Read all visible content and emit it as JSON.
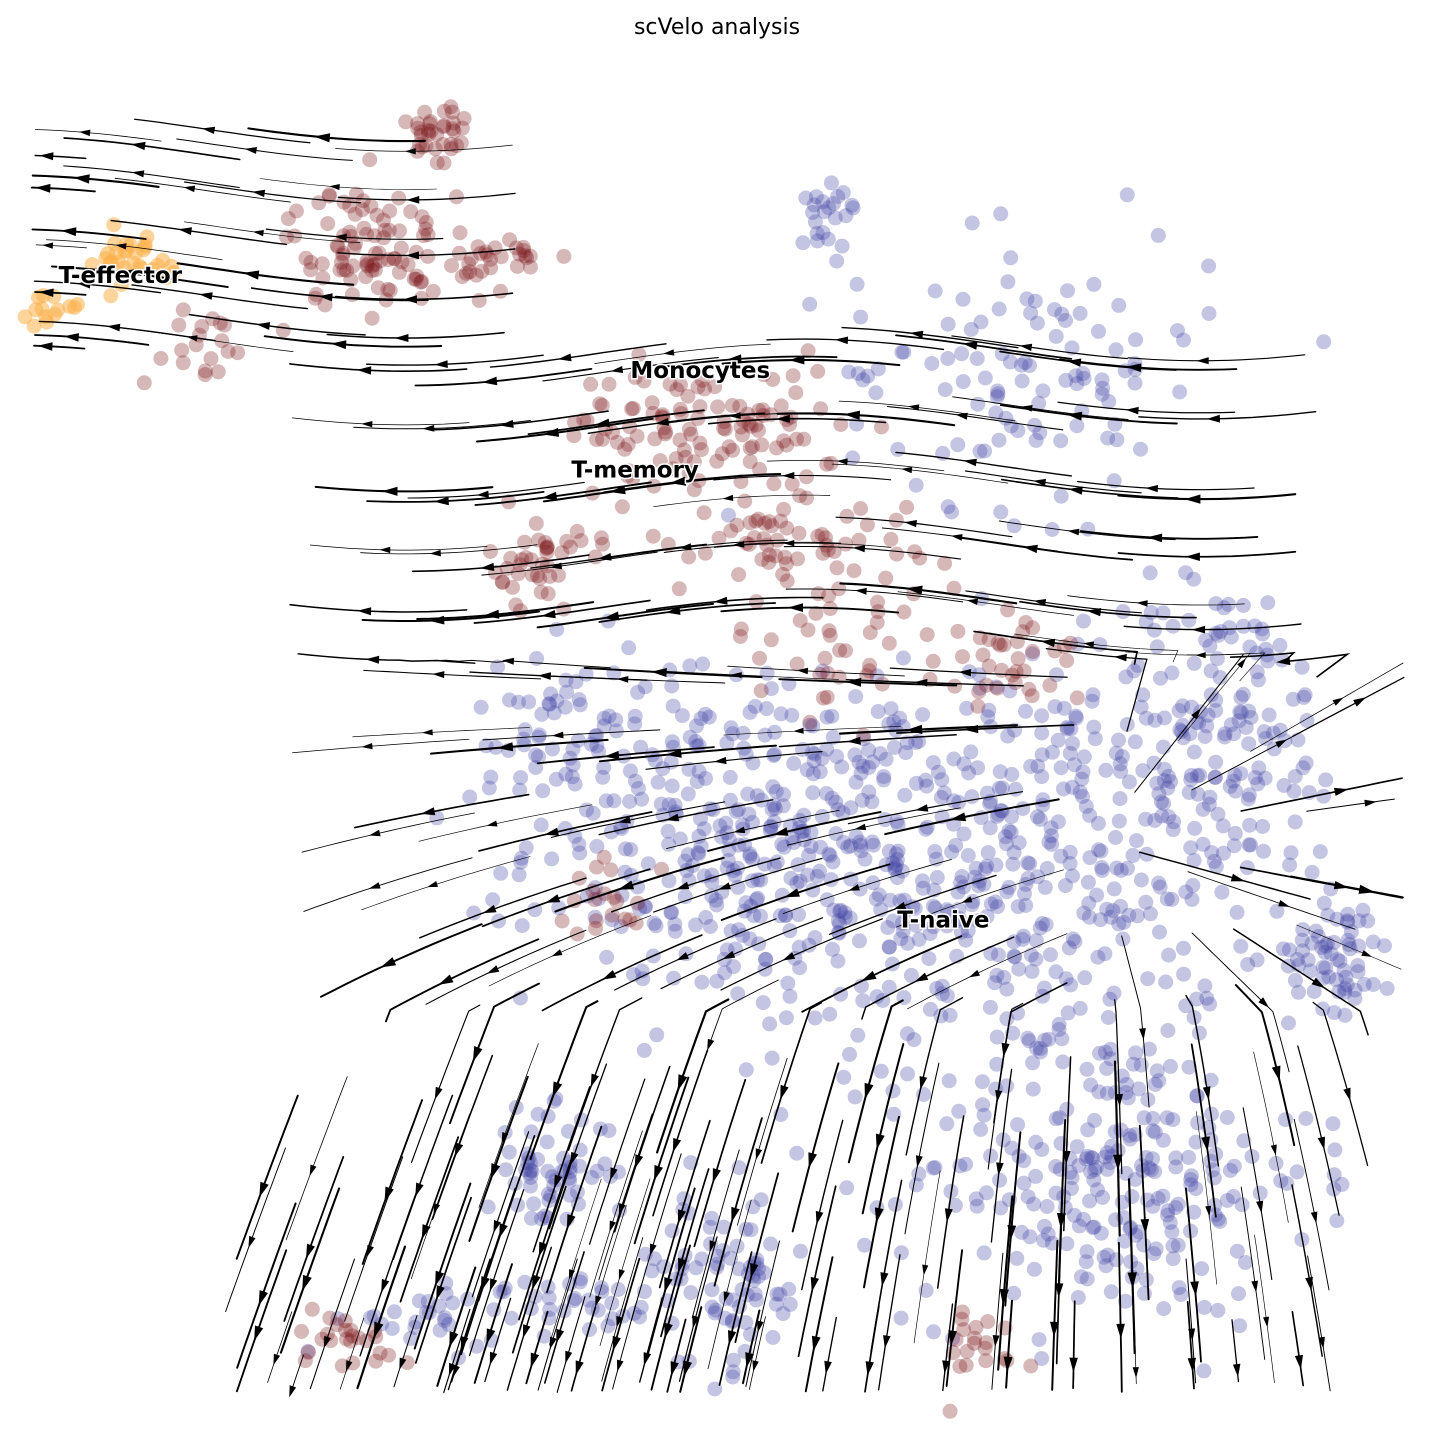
{
  "chart_data": {
    "type": "scatter",
    "title": "scVelo analysis",
    "xlabel": "",
    "ylabel": "",
    "grid": false,
    "axes_visible": false,
    "xlim": [
      0,
      100
    ],
    "ylim": [
      0,
      100
    ],
    "colors": {
      "T-naive": "#3b3fa3",
      "Monocytes": "#7a1416",
      "T-memory": "#7a1416",
      "T-effector": "#fbb04a",
      "streamlines": "#000000"
    },
    "cluster_labels": [
      {
        "name": "T-effector",
        "x": 3.1,
        "y": 82.4
      },
      {
        "name": "Monocytes",
        "x": 43.8,
        "y": 75.5
      },
      {
        "name": "T-memory",
        "x": 39.6,
        "y": 68.3
      },
      {
        "name": "T-naive",
        "x": 62.8,
        "y": 35.7
      }
    ],
    "clusters": [
      {
        "name": "T-naive",
        "color": "#3b3fa3",
        "blobs": [
          {
            "cx": 70,
            "cy": 40,
            "rx": 18,
            "ry": 14,
            "n": 420
          },
          {
            "cx": 52,
            "cy": 42,
            "rx": 14,
            "ry": 11,
            "n": 300
          },
          {
            "cx": 78,
            "cy": 18,
            "rx": 13,
            "ry": 10,
            "n": 260
          },
          {
            "cx": 86,
            "cy": 50,
            "rx": 8,
            "ry": 10,
            "n": 140
          },
          {
            "cx": 94,
            "cy": 34,
            "rx": 3,
            "ry": 4,
            "n": 60
          },
          {
            "cx": 72,
            "cy": 76,
            "rx": 12,
            "ry": 9,
            "n": 110
          },
          {
            "cx": 58,
            "cy": 88,
            "rx": 2,
            "ry": 2,
            "n": 22
          },
          {
            "cx": 38,
            "cy": 18,
            "rx": 4,
            "ry": 4,
            "n": 60
          },
          {
            "cx": 51,
            "cy": 10,
            "rx": 5,
            "ry": 6,
            "n": 70
          },
          {
            "cx": 40,
            "cy": 9,
            "rx": 7,
            "ry": 3,
            "n": 40
          },
          {
            "cx": 29,
            "cy": 7,
            "rx": 5,
            "ry": 2,
            "n": 25
          },
          {
            "cx": 40,
            "cy": 50,
            "rx": 7,
            "ry": 6,
            "n": 60
          }
        ]
      },
      {
        "name": "Monocytes",
        "color": "#7a1416",
        "blobs": [
          {
            "cx": 49,
            "cy": 72,
            "rx": 9,
            "ry": 4,
            "n": 110
          },
          {
            "cx": 55,
            "cy": 64,
            "rx": 8,
            "ry": 4,
            "n": 70
          },
          {
            "cx": 25,
            "cy": 85,
            "rx": 5,
            "ry": 4,
            "n": 90
          },
          {
            "cx": 30,
            "cy": 93,
            "rx": 2,
            "ry": 3,
            "n": 35
          },
          {
            "cx": 35,
            "cy": 84,
            "rx": 3,
            "ry": 2,
            "n": 30
          }
        ]
      },
      {
        "name": "T-memory",
        "color": "#7a1416",
        "blobs": [
          {
            "cx": 37,
            "cy": 62,
            "rx": 3,
            "ry": 3,
            "n": 40
          },
          {
            "cx": 72,
            "cy": 55,
            "rx": 4,
            "ry": 4,
            "n": 30
          },
          {
            "cx": 60,
            "cy": 56,
            "rx": 8,
            "ry": 4,
            "n": 40
          },
          {
            "cx": 42,
            "cy": 38,
            "rx": 3,
            "ry": 3,
            "n": 20
          },
          {
            "cx": 24,
            "cy": 6,
            "rx": 4,
            "ry": 2,
            "n": 25
          },
          {
            "cx": 68,
            "cy": 5,
            "rx": 4,
            "ry": 3,
            "n": 20
          },
          {
            "cx": 13,
            "cy": 78,
            "rx": 4,
            "ry": 3,
            "n": 20
          }
        ]
      },
      {
        "name": "T-effector",
        "color": "#fbb04a",
        "blobs": [
          {
            "cx": 8,
            "cy": 84,
            "rx": 4,
            "ry": 2,
            "n": 30
          },
          {
            "cx": 3,
            "cy": 80.5,
            "rx": 2,
            "ry": 1,
            "n": 14
          }
        ]
      }
    ],
    "velocity_field": {
      "type": "streamlines",
      "arrow_direction": "toward lower x (leftward) in the upper region; outward/downward from source near (77, 42) in the lower region"
    }
  }
}
